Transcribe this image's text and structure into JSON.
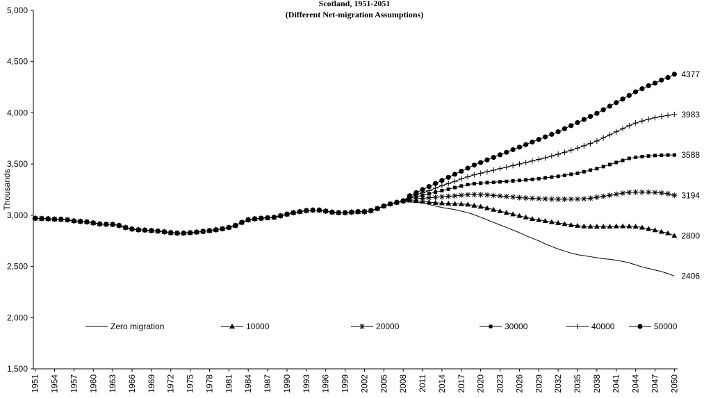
{
  "chart_data": {
    "type": "line",
    "title": "Scotland, 1951-2051",
    "subtitle": "(Different Net-migration Assumptions)",
    "y_label": "Thousands",
    "x": [
      1951,
      1952,
      1953,
      1954,
      1955,
      1956,
      1957,
      1958,
      1959,
      1960,
      1961,
      1962,
      1963,
      1964,
      1965,
      1966,
      1967,
      1968,
      1969,
      1970,
      1971,
      1972,
      1973,
      1974,
      1975,
      1976,
      1977,
      1978,
      1979,
      1980,
      1981,
      1982,
      1983,
      1984,
      1985,
      1986,
      1987,
      1988,
      1989,
      1990,
      1991,
      1992,
      1993,
      1994,
      1995,
      1996,
      1997,
      1998,
      1999,
      2000,
      2001,
      2002,
      2003,
      2004,
      2005,
      2006,
      2007,
      2008,
      2009,
      2010,
      2011,
      2012,
      2013,
      2014,
      2015,
      2016,
      2017,
      2018,
      2019,
      2020,
      2021,
      2022,
      2023,
      2024,
      2025,
      2026,
      2027,
      2028,
      2029,
      2030,
      2031,
      2032,
      2033,
      2034,
      2035,
      2036,
      2037,
      2038,
      2039,
      2040,
      2041,
      2042,
      2043,
      2044,
      2045,
      2046,
      2047,
      2048,
      2049,
      2050
    ],
    "xlim": [
      1950.5,
      2050.5
    ],
    "xticks": [
      1951,
      1954,
      1957,
      1960,
      1963,
      1966,
      1969,
      1972,
      1975,
      1978,
      1981,
      1984,
      1987,
      1990,
      1993,
      1996,
      1999,
      2002,
      2005,
      2008,
      2011,
      2014,
      2017,
      2020,
      2023,
      2026,
      2029,
      2032,
      2035,
      2038,
      2041,
      2044,
      2047,
      2050
    ],
    "ylim": [
      1500,
      5000
    ],
    "yticks": [
      {
        "value": 1500,
        "label": "1,500"
      },
      {
        "value": 2000,
        "label": "2,000"
      },
      {
        "value": 2500,
        "label": "2,500"
      },
      {
        "value": 3000,
        "label": "3,000"
      },
      {
        "value": 3500,
        "label": "3,500"
      },
      {
        "value": 4000,
        "label": "4,000"
      },
      {
        "value": 4500,
        "label": "4,500"
      },
      {
        "value": 5000,
        "label": "5,000"
      }
    ],
    "series": [
      {
        "name": "Zero migration",
        "color": "#000000",
        "marker": "none",
        "values": [
          2970,
          2968,
          2965,
          2962,
          2960,
          2955,
          2945,
          2940,
          2935,
          2925,
          2915,
          2912,
          2910,
          2900,
          2880,
          2865,
          2858,
          2855,
          2850,
          2845,
          2838,
          2830,
          2825,
          2825,
          2830,
          2835,
          2842,
          2850,
          2858,
          2868,
          2880,
          2900,
          2930,
          2955,
          2965,
          2970,
          2975,
          2980,
          2995,
          3010,
          3025,
          3035,
          3045,
          3050,
          3050,
          3040,
          3030,
          3025,
          3025,
          3030,
          3035,
          3035,
          3045,
          3065,
          3090,
          3110,
          3125,
          3140,
          3130,
          3125,
          3120,
          3105,
          3090,
          3075,
          3065,
          3055,
          3040,
          3025,
          3005,
          2980,
          2955,
          2930,
          2905,
          2880,
          2855,
          2830,
          2800,
          2775,
          2750,
          2720,
          2695,
          2670,
          2650,
          2630,
          2615,
          2605,
          2595,
          2585,
          2575,
          2570,
          2560,
          2550,
          2535,
          2515,
          2495,
          2480,
          2465,
          2450,
          2430,
          2406
        ]
      },
      {
        "name": "10000",
        "color": "#000000",
        "marker": "triangle",
        "values": [
          2970,
          2968,
          2965,
          2962,
          2960,
          2955,
          2945,
          2940,
          2935,
          2925,
          2915,
          2912,
          2910,
          2900,
          2880,
          2865,
          2858,
          2855,
          2850,
          2845,
          2838,
          2830,
          2825,
          2825,
          2830,
          2835,
          2842,
          2850,
          2858,
          2868,
          2880,
          2900,
          2930,
          2955,
          2965,
          2970,
          2975,
          2980,
          2995,
          3010,
          3025,
          3035,
          3045,
          3050,
          3050,
          3040,
          3030,
          3025,
          3025,
          3030,
          3035,
          3035,
          3045,
          3065,
          3090,
          3110,
          3125,
          3140,
          3145,
          3140,
          3135,
          3128,
          3122,
          3118,
          3115,
          3112,
          3110,
          3105,
          3095,
          3085,
          3070,
          3055,
          3040,
          3025,
          3010,
          2995,
          2980,
          2965,
          2955,
          2945,
          2935,
          2925,
          2915,
          2905,
          2898,
          2892,
          2890,
          2890,
          2890,
          2890,
          2892,
          2893,
          2892,
          2890,
          2880,
          2868,
          2855,
          2840,
          2825,
          2800
        ]
      },
      {
        "name": "20000",
        "color": "#000000",
        "marker": "star",
        "values": [
          2970,
          2968,
          2965,
          2962,
          2960,
          2955,
          2945,
          2940,
          2935,
          2925,
          2915,
          2912,
          2910,
          2900,
          2880,
          2865,
          2858,
          2855,
          2850,
          2845,
          2838,
          2830,
          2825,
          2825,
          2830,
          2835,
          2842,
          2850,
          2858,
          2868,
          2880,
          2900,
          2930,
          2955,
          2965,
          2970,
          2975,
          2980,
          2995,
          3010,
          3025,
          3035,
          3045,
          3050,
          3050,
          3040,
          3030,
          3025,
          3025,
          3030,
          3035,
          3035,
          3045,
          3065,
          3090,
          3110,
          3125,
          3140,
          3155,
          3160,
          3165,
          3170,
          3175,
          3180,
          3185,
          3190,
          3195,
          3200,
          3202,
          3200,
          3198,
          3192,
          3188,
          3183,
          3178,
          3172,
          3168,
          3165,
          3162,
          3160,
          3158,
          3157,
          3157,
          3158,
          3158,
          3160,
          3165,
          3175,
          3185,
          3195,
          3205,
          3215,
          3222,
          3225,
          3225,
          3225,
          3222,
          3218,
          3210,
          3194
        ]
      },
      {
        "name": "30000",
        "color": "#000000",
        "marker": "square",
        "values": [
          2970,
          2968,
          2965,
          2962,
          2960,
          2955,
          2945,
          2940,
          2935,
          2925,
          2915,
          2912,
          2910,
          2900,
          2880,
          2865,
          2858,
          2855,
          2850,
          2845,
          2838,
          2830,
          2825,
          2825,
          2830,
          2835,
          2842,
          2850,
          2858,
          2868,
          2880,
          2900,
          2930,
          2955,
          2965,
          2970,
          2975,
          2980,
          2995,
          3010,
          3025,
          3035,
          3045,
          3050,
          3050,
          3040,
          3030,
          3025,
          3025,
          3030,
          3035,
          3035,
          3045,
          3065,
          3090,
          3110,
          3125,
          3140,
          3165,
          3180,
          3195,
          3210,
          3225,
          3240,
          3255,
          3270,
          3285,
          3300,
          3308,
          3313,
          3318,
          3322,
          3326,
          3330,
          3335,
          3340,
          3345,
          3350,
          3357,
          3365,
          3372,
          3380,
          3390,
          3400,
          3410,
          3425,
          3440,
          3455,
          3475,
          3495,
          3515,
          3535,
          3555,
          3565,
          3572,
          3578,
          3583,
          3586,
          3588,
          3588
        ]
      },
      {
        "name": "40000",
        "color": "#000000",
        "marker": "plus",
        "values": [
          2970,
          2968,
          2965,
          2962,
          2960,
          2955,
          2945,
          2940,
          2935,
          2925,
          2915,
          2912,
          2910,
          2900,
          2880,
          2865,
          2858,
          2855,
          2850,
          2845,
          2838,
          2830,
          2825,
          2825,
          2830,
          2835,
          2842,
          2850,
          2858,
          2868,
          2880,
          2900,
          2930,
          2955,
          2965,
          2970,
          2975,
          2980,
          2995,
          3010,
          3025,
          3035,
          3045,
          3050,
          3050,
          3040,
          3030,
          3025,
          3025,
          3030,
          3035,
          3035,
          3045,
          3065,
          3090,
          3110,
          3125,
          3140,
          3175,
          3200,
          3220,
          3240,
          3265,
          3290,
          3310,
          3330,
          3355,
          3375,
          3395,
          3410,
          3425,
          3440,
          3455,
          3470,
          3485,
          3500,
          3515,
          3530,
          3545,
          3560,
          3578,
          3596,
          3615,
          3635,
          3655,
          3678,
          3700,
          3725,
          3755,
          3785,
          3815,
          3845,
          3875,
          3900,
          3920,
          3938,
          3953,
          3965,
          3975,
          3983
        ]
      },
      {
        "name": "50000",
        "color": "#000000",
        "marker": "circle",
        "values": [
          2970,
          2968,
          2965,
          2962,
          2960,
          2955,
          2945,
          2940,
          2935,
          2925,
          2915,
          2912,
          2910,
          2900,
          2880,
          2865,
          2858,
          2855,
          2850,
          2845,
          2838,
          2830,
          2825,
          2825,
          2830,
          2835,
          2842,
          2850,
          2858,
          2868,
          2880,
          2900,
          2930,
          2955,
          2965,
          2970,
          2975,
          2980,
          2995,
          3010,
          3025,
          3035,
          3045,
          3050,
          3050,
          3040,
          3030,
          3025,
          3025,
          3030,
          3035,
          3035,
          3045,
          3065,
          3090,
          3110,
          3125,
          3140,
          3190,
          3220,
          3250,
          3280,
          3310,
          3340,
          3370,
          3400,
          3430,
          3460,
          3490,
          3515,
          3540,
          3565,
          3590,
          3615,
          3640,
          3665,
          3690,
          3715,
          3740,
          3765,
          3790,
          3815,
          3845,
          3875,
          3905,
          3935,
          3965,
          3995,
          4030,
          4065,
          4100,
          4135,
          4170,
          4205,
          4235,
          4265,
          4290,
          4320,
          4345,
          4377
        ]
      }
    ]
  }
}
